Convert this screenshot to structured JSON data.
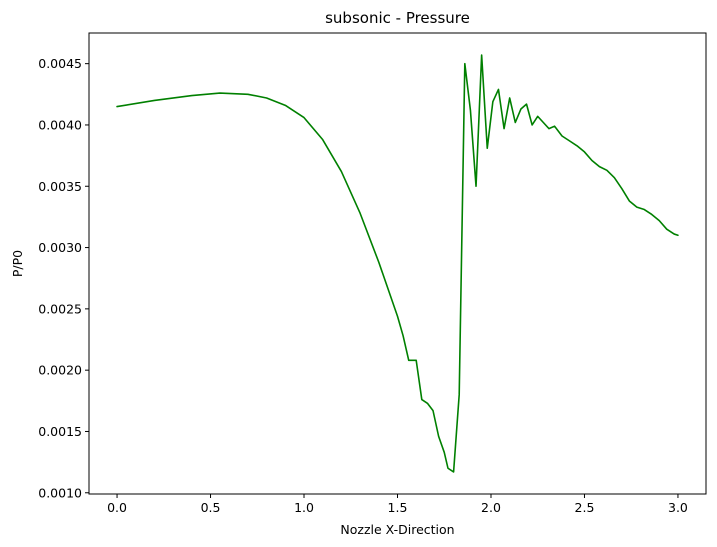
{
  "chart_data": {
    "type": "line",
    "title": "subsonic - Pressure",
    "xlabel": "Nozzle X-Direction",
    "ylabel": "P/P0",
    "xlim": [
      -0.15,
      3.15
    ],
    "ylim": [
      0.00099,
      0.00475
    ],
    "xticks": [
      0.0,
      0.5,
      1.0,
      1.5,
      2.0,
      2.5,
      3.0
    ],
    "xtick_labels": [
      "0.0",
      "0.5",
      "1.0",
      "1.5",
      "2.0",
      "2.5",
      "3.0"
    ],
    "yticks": [
      0.001,
      0.0015,
      0.002,
      0.0025,
      0.003,
      0.0035,
      0.004,
      0.0045
    ],
    "ytick_labels": [
      "0.0010",
      "0.0015",
      "0.0020",
      "0.0025",
      "0.0030",
      "0.0035",
      "0.0040",
      "0.0045"
    ],
    "grid": false,
    "series": [
      {
        "color": "#008000",
        "x": [
          0.0,
          0.2,
          0.4,
          0.55,
          0.7,
          0.8,
          0.9,
          1.0,
          1.1,
          1.2,
          1.3,
          1.4,
          1.5,
          1.53,
          1.56,
          1.6,
          1.63,
          1.66,
          1.69,
          1.72,
          1.75,
          1.77,
          1.8,
          1.81,
          1.83,
          1.86,
          1.89,
          1.92,
          1.95,
          1.98,
          2.01,
          2.04,
          2.07,
          2.1,
          2.13,
          2.16,
          2.19,
          2.22,
          2.25,
          2.28,
          2.31,
          2.34,
          2.38,
          2.42,
          2.46,
          2.5,
          2.54,
          2.58,
          2.62,
          2.66,
          2.7,
          2.74,
          2.78,
          2.82,
          2.86,
          2.9,
          2.94,
          2.98,
          3.0
        ],
        "y": [
          0.00415,
          0.0042,
          0.00424,
          0.00426,
          0.00425,
          0.00422,
          0.00416,
          0.00406,
          0.00388,
          0.00362,
          0.00328,
          0.00288,
          0.00244,
          0.00228,
          0.00208,
          0.00208,
          0.00176,
          0.00173,
          0.00167,
          0.00146,
          0.00133,
          0.0012,
          0.00117,
          0.00138,
          0.0018,
          0.0045,
          0.00412,
          0.0035,
          0.00457,
          0.00381,
          0.00419,
          0.00429,
          0.00397,
          0.00422,
          0.00402,
          0.00413,
          0.00417,
          0.004,
          0.00407,
          0.00402,
          0.00397,
          0.00399,
          0.00391,
          0.00387,
          0.00383,
          0.00378,
          0.00371,
          0.00366,
          0.00363,
          0.00357,
          0.00348,
          0.00338,
          0.00333,
          0.00331,
          0.00327,
          0.00322,
          0.00315,
          0.00311,
          0.0031
        ]
      }
    ]
  }
}
